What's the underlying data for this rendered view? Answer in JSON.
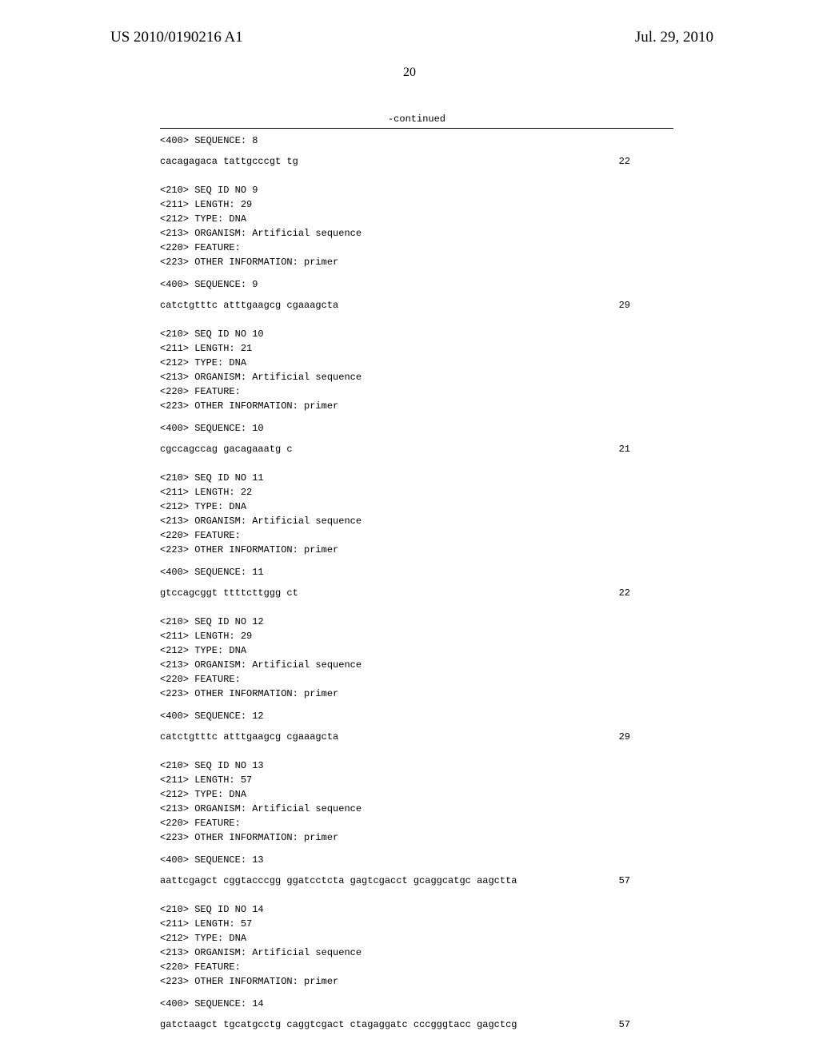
{
  "header": {
    "publication_number": "US 2010/0190216 A1",
    "publication_date": "Jul. 29, 2010",
    "page_number": "20"
  },
  "continued_label": "-continued",
  "sequences": [
    {
      "meta": [
        "<400> SEQUENCE: 8"
      ],
      "seq_text": "cacagagaca tattgcccgt tg",
      "seq_num": "22"
    },
    {
      "meta": [
        "<210> SEQ ID NO 9",
        "<211> LENGTH: 29",
        "<212> TYPE: DNA",
        "<213> ORGANISM: Artificial sequence",
        "<220> FEATURE:",
        "<223> OTHER INFORMATION: primer",
        "",
        "<400> SEQUENCE: 9"
      ],
      "seq_text": "catctgtttc atttgaagcg cgaaagcta",
      "seq_num": "29"
    },
    {
      "meta": [
        "<210> SEQ ID NO 10",
        "<211> LENGTH: 21",
        "<212> TYPE: DNA",
        "<213> ORGANISM: Artificial sequence",
        "<220> FEATURE:",
        "<223> OTHER INFORMATION: primer",
        "",
        "<400> SEQUENCE: 10"
      ],
      "seq_text": "cgccagccag gacagaaatg c",
      "seq_num": "21"
    },
    {
      "meta": [
        "<210> SEQ ID NO 11",
        "<211> LENGTH: 22",
        "<212> TYPE: DNA",
        "<213> ORGANISM: Artificial sequence",
        "<220> FEATURE:",
        "<223> OTHER INFORMATION: primer",
        "",
        "<400> SEQUENCE: 11"
      ],
      "seq_text": "gtccagcggt ttttcttggg ct",
      "seq_num": "22"
    },
    {
      "meta": [
        "<210> SEQ ID NO 12",
        "<211> LENGTH: 29",
        "<212> TYPE: DNA",
        "<213> ORGANISM: Artificial sequence",
        "<220> FEATURE:",
        "<223> OTHER INFORMATION: primer",
        "",
        "<400> SEQUENCE: 12"
      ],
      "seq_text": "catctgtttc atttgaagcg cgaaagcta",
      "seq_num": "29"
    },
    {
      "meta": [
        "<210> SEQ ID NO 13",
        "<211> LENGTH: 57",
        "<212> TYPE: DNA",
        "<213> ORGANISM: Artificial sequence",
        "<220> FEATURE:",
        "<223> OTHER INFORMATION: primer",
        "",
        "<400> SEQUENCE: 13"
      ],
      "seq_text": "aattcgagct cggtacccgg ggatcctcta gagtcgacct gcaggcatgc aagctta",
      "seq_num": "57"
    },
    {
      "meta": [
        "<210> SEQ ID NO 14",
        "<211> LENGTH: 57",
        "<212> TYPE: DNA",
        "<213> ORGANISM: Artificial sequence",
        "<220> FEATURE:",
        "<223> OTHER INFORMATION: primer",
        "",
        "<400> SEQUENCE: 14"
      ],
      "seq_text": "gatctaagct tgcatgcctg caggtcgact ctagaggatc cccgggtacc gagctcg",
      "seq_num": "57"
    }
  ]
}
